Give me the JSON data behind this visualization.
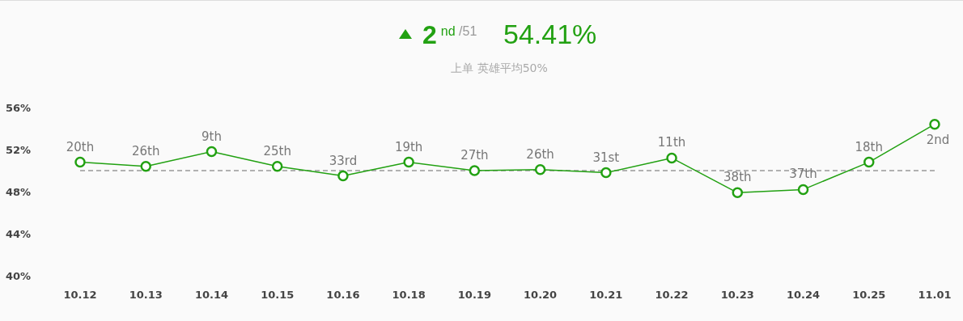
{
  "chart_data": {
    "type": "line",
    "title": "2$^{nd /51}$",
    "subtitle": "上单 英雄平均50%",
    "categories": [
      "10.12",
      "10.13",
      "10.14",
      "10.15",
      "10.16",
      "10.18",
      "10.19",
      "10.20",
      "10.21",
      "10.22",
      "10.23",
      "10.24",
      "10.25",
      "11.01"
    ],
    "series": [
      {
        "color": "#22a112",
        "values": [
          50.8,
          50.4,
          51.8,
          50.4,
          49.5,
          50.8,
          50.0,
          50.1,
          49.8,
          51.2,
          47.9,
          48.2,
          50.8,
          54.41
        ]
      }
    ],
    "ylim": [
      40,
      56
    ],
    "yticks": [
      {
        "value": 40,
        "label": "40%"
      },
      {
        "value": 44,
        "label": "44%"
      },
      {
        "value": 48,
        "label": "48%"
      },
      {
        "value": 52,
        "label": "52%"
      },
      {
        "value": 56,
        "label": "56%"
      }
    ],
    "ref_lines": [
      {
        "axis": "y",
        "value": 50,
        "color": "#999999",
        "line_style": "dashed"
      }
    ],
    "marker": "circle",
    "line_style": "solid",
    "grid": false,
    "annotations": [
      "54.41%",
      {
        "text": "20th",
        "x": "10.12",
        "y": 50.8
      },
      {
        "text": "26th",
        "x": "10.13",
        "y": 50.4
      },
      {
        "text": "9th",
        "x": "10.14",
        "y": 51.8
      },
      {
        "text": "25th",
        "x": "10.15",
        "y": 50.4
      },
      {
        "text": "33rd",
        "x": "10.16",
        "y": 49.5
      },
      {
        "text": "19th",
        "x": "10.18",
        "y": 50.8
      },
      {
        "text": "27th",
        "x": "10.19",
        "y": 50.0
      },
      {
        "text": "26th",
        "x": "10.20",
        "y": 50.1
      },
      {
        "text": "31st",
        "x": "10.21",
        "y": 49.8
      },
      {
        "text": "11th",
        "x": "10.22",
        "y": 51.2
      },
      {
        "text": "38th",
        "x": "10.23",
        "y": 47.9
      },
      {
        "text": "37th",
        "x": "10.24",
        "y": 48.2
      },
      {
        "text": "18th",
        "x": "10.25",
        "y": 50.8
      },
      {
        "text": "2nd",
        "x": "11.01",
        "y": 54.41
      }
    ]
  }
}
